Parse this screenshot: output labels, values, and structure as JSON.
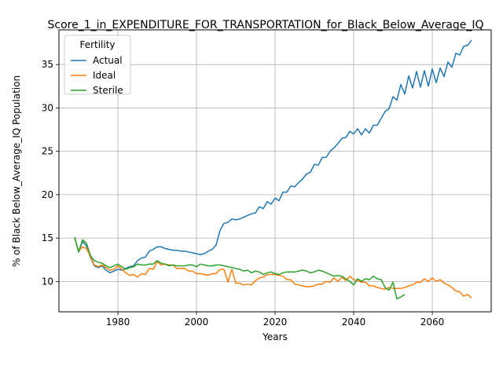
{
  "chart_data": {
    "type": "line",
    "title": "Score_1_in_EXPENDITURE_FOR_TRANSPORTATION_for_Black_Below_Average_IQ",
    "xlabel": "Years",
    "ylabel": "% of Black Below_Average_IQ Population",
    "xlim": [
      1965,
      2075
    ],
    "ylim": [
      6.5,
      39
    ],
    "xticks": [
      1980,
      2000,
      2020,
      2040,
      2060
    ],
    "yticks": [
      10,
      15,
      20,
      25,
      30,
      35
    ],
    "grid": true,
    "legend": {
      "title": "Fertility",
      "placement": "top-left"
    },
    "series": [
      {
        "name": "Actual",
        "color": "#1f77b4",
        "points": [
          [
            1969,
            15.1
          ],
          [
            1970,
            13.4
          ],
          [
            1971,
            14.6
          ],
          [
            1972,
            14.1
          ],
          [
            1973,
            12.8
          ],
          [
            1974,
            11.8
          ],
          [
            1975,
            11.6
          ],
          [
            1976,
            11.8
          ],
          [
            1977,
            11.3
          ],
          [
            1978,
            11.0
          ],
          [
            1979,
            11.2
          ],
          [
            1980,
            11.4
          ],
          [
            1981,
            11.3
          ],
          [
            1982,
            11.5
          ],
          [
            1983,
            11.7
          ],
          [
            1984,
            11.8
          ],
          [
            1985,
            12.4
          ],
          [
            1986,
            12.7
          ],
          [
            1987,
            12.8
          ],
          [
            1988,
            13.5
          ],
          [
            1989,
            13.7
          ],
          [
            1990,
            14.0
          ],
          [
            1991,
            14.0
          ],
          [
            1992,
            13.8
          ],
          [
            1993,
            13.7
          ],
          [
            1994,
            13.6
          ],
          [
            1995,
            13.6
          ],
          [
            1996,
            13.5
          ],
          [
            1997,
            13.5
          ],
          [
            1998,
            13.4
          ],
          [
            1999,
            13.3
          ],
          [
            2000,
            13.2
          ],
          [
            2001,
            13.1
          ],
          [
            2002,
            13.2
          ],
          [
            2003,
            13.5
          ],
          [
            2004,
            13.7
          ],
          [
            2005,
            14.2
          ],
          [
            2006,
            15.9
          ],
          [
            2007,
            16.7
          ],
          [
            2008,
            16.8
          ],
          [
            2009,
            17.2
          ],
          [
            2010,
            17.1
          ],
          [
            2011,
            17.2
          ],
          [
            2012,
            17.4
          ],
          [
            2013,
            17.6
          ],
          [
            2014,
            17.8
          ],
          [
            2015,
            17.9
          ],
          [
            2016,
            18.6
          ],
          [
            2017,
            18.4
          ],
          [
            2018,
            19.2
          ],
          [
            2019,
            18.9
          ],
          [
            2020,
            19.6
          ],
          [
            2021,
            19.3
          ],
          [
            2022,
            20.3
          ],
          [
            2023,
            20.3
          ],
          [
            2024,
            21.0
          ],
          [
            2025,
            20.9
          ],
          [
            2026,
            21.4
          ],
          [
            2027,
            21.8
          ],
          [
            2028,
            22.4
          ],
          [
            2029,
            22.6
          ],
          [
            2030,
            23.5
          ],
          [
            2031,
            23.4
          ],
          [
            2032,
            24.3
          ],
          [
            2033,
            24.3
          ],
          [
            2034,
            25.0
          ],
          [
            2035,
            25.4
          ],
          [
            2036,
            25.9
          ],
          [
            2037,
            26.5
          ],
          [
            2038,
            26.6
          ],
          [
            2039,
            27.3
          ],
          [
            2040,
            27.0
          ],
          [
            2041,
            27.6
          ],
          [
            2042,
            26.9
          ],
          [
            2043,
            27.6
          ],
          [
            2044,
            27.1
          ],
          [
            2045,
            28.0
          ],
          [
            2046,
            28.0
          ],
          [
            2047,
            28.8
          ],
          [
            2048,
            29.6
          ],
          [
            2049,
            29.9
          ],
          [
            2050,
            31.3
          ],
          [
            2051,
            30.9
          ],
          [
            2052,
            32.7
          ],
          [
            2053,
            31.6
          ],
          [
            2054,
            33.7
          ],
          [
            2055,
            32.3
          ],
          [
            2056,
            34.2
          ],
          [
            2057,
            32.4
          ],
          [
            2058,
            34.3
          ],
          [
            2059,
            32.5
          ],
          [
            2060,
            34.5
          ],
          [
            2061,
            32.9
          ],
          [
            2062,
            34.6
          ],
          [
            2063,
            33.6
          ],
          [
            2064,
            35.3
          ],
          [
            2065,
            34.7
          ],
          [
            2066,
            36.3
          ],
          [
            2067,
            36.1
          ],
          [
            2068,
            37.1
          ],
          [
            2069,
            37.2
          ],
          [
            2070,
            37.8
          ]
        ]
      },
      {
        "name": "Ideal",
        "color": "#ff7f0e",
        "points": [
          [
            1969,
            15.0
          ],
          [
            1970,
            13.5
          ],
          [
            1971,
            14.0
          ],
          [
            1972,
            13.8
          ],
          [
            1973,
            12.9
          ],
          [
            1974,
            11.9
          ],
          [
            1975,
            11.7
          ],
          [
            1976,
            11.9
          ],
          [
            1977,
            11.6
          ],
          [
            1978,
            11.3
          ],
          [
            1979,
            11.4
          ],
          [
            1980,
            11.8
          ],
          [
            1981,
            11.4
          ],
          [
            1982,
            11.0
          ],
          [
            1983,
            10.7
          ],
          [
            1984,
            10.8
          ],
          [
            1985,
            10.5
          ],
          [
            1986,
            10.9
          ],
          [
            1987,
            10.8
          ],
          [
            1988,
            11.5
          ],
          [
            1989,
            11.4
          ],
          [
            1990,
            12.3
          ],
          [
            1991,
            11.9
          ],
          [
            1992,
            12.0
          ],
          [
            1993,
            11.9
          ],
          [
            1994,
            11.9
          ],
          [
            1995,
            11.5
          ],
          [
            1996,
            11.5
          ],
          [
            1997,
            11.5
          ],
          [
            1998,
            11.2
          ],
          [
            1999,
            11.2
          ],
          [
            2000,
            10.9
          ],
          [
            2001,
            10.9
          ],
          [
            2002,
            10.8
          ],
          [
            2003,
            10.7
          ],
          [
            2004,
            10.9
          ],
          [
            2005,
            10.9
          ],
          [
            2006,
            11.4
          ],
          [
            2007,
            11.4
          ],
          [
            2008,
            9.9
          ],
          [
            2009,
            11.4
          ],
          [
            2010,
            9.8
          ],
          [
            2011,
            9.8
          ],
          [
            2012,
            9.6
          ],
          [
            2013,
            9.7
          ],
          [
            2014,
            9.6
          ],
          [
            2015,
            10.1
          ],
          [
            2016,
            10.4
          ],
          [
            2017,
            10.5
          ],
          [
            2018,
            10.8
          ],
          [
            2019,
            10.8
          ],
          [
            2020,
            10.8
          ],
          [
            2021,
            10.7
          ],
          [
            2022,
            10.6
          ],
          [
            2023,
            10.2
          ],
          [
            2024,
            10.2
          ],
          [
            2025,
            9.7
          ],
          [
            2026,
            9.6
          ],
          [
            2027,
            9.5
          ],
          [
            2028,
            9.4
          ],
          [
            2029,
            9.4
          ],
          [
            2030,
            9.5
          ],
          [
            2031,
            9.7
          ],
          [
            2032,
            9.7
          ],
          [
            2033,
            10.0
          ],
          [
            2034,
            9.9
          ],
          [
            2035,
            10.4
          ],
          [
            2036,
            10.0
          ],
          [
            2037,
            10.5
          ],
          [
            2038,
            10.1
          ],
          [
            2039,
            10.6
          ],
          [
            2040,
            10.2
          ],
          [
            2041,
            10.1
          ],
          [
            2042,
            9.9
          ],
          [
            2043,
            9.9
          ],
          [
            2044,
            9.5
          ],
          [
            2045,
            9.5
          ],
          [
            2046,
            9.3
          ],
          [
            2047,
            9.2
          ],
          [
            2048,
            9.1
          ],
          [
            2049,
            9.3
          ],
          [
            2050,
            9.2
          ],
          [
            2051,
            9.2
          ],
          [
            2052,
            9.2
          ],
          [
            2053,
            9.3
          ],
          [
            2054,
            9.5
          ],
          [
            2055,
            9.6
          ],
          [
            2056,
            9.9
          ],
          [
            2057,
            9.9
          ],
          [
            2058,
            10.3
          ],
          [
            2059,
            10.0
          ],
          [
            2060,
            10.4
          ],
          [
            2061,
            10.0
          ],
          [
            2062,
            10.2
          ],
          [
            2063,
            9.8
          ],
          [
            2064,
            9.6
          ],
          [
            2065,
            9.3
          ],
          [
            2066,
            8.9
          ],
          [
            2067,
            8.8
          ],
          [
            2068,
            8.3
          ],
          [
            2069,
            8.5
          ],
          [
            2070,
            8.1
          ]
        ]
      },
      {
        "name": "Sterile",
        "color": "#2ca02c",
        "points": [
          [
            1969,
            15.1
          ],
          [
            1970,
            13.4
          ],
          [
            1971,
            14.8
          ],
          [
            1972,
            14.4
          ],
          [
            1973,
            13.0
          ],
          [
            1974,
            12.4
          ],
          [
            1975,
            12.2
          ],
          [
            1976,
            12.1
          ],
          [
            1977,
            11.8
          ],
          [
            1978,
            11.6
          ],
          [
            1979,
            11.8
          ],
          [
            1980,
            12.0
          ],
          [
            1981,
            11.7
          ],
          [
            1982,
            11.4
          ],
          [
            1983,
            11.6
          ],
          [
            1984,
            11.7
          ],
          [
            1985,
            12.0
          ],
          [
            1986,
            11.9
          ],
          [
            1987,
            11.9
          ],
          [
            1988,
            12.0
          ],
          [
            1989,
            12.0
          ],
          [
            1990,
            12.4
          ],
          [
            1991,
            12.1
          ],
          [
            1992,
            12.0
          ],
          [
            1993,
            11.8
          ],
          [
            1994,
            11.9
          ],
          [
            1995,
            11.8
          ],
          [
            1996,
            11.8
          ],
          [
            1997,
            11.8
          ],
          [
            1998,
            11.9
          ],
          [
            1999,
            11.9
          ],
          [
            2000,
            11.7
          ],
          [
            2001,
            12.0
          ],
          [
            2002,
            11.9
          ],
          [
            2003,
            11.8
          ],
          [
            2004,
            11.8
          ],
          [
            2005,
            11.9
          ],
          [
            2006,
            11.9
          ],
          [
            2007,
            11.8
          ],
          [
            2008,
            11.7
          ],
          [
            2009,
            11.6
          ],
          [
            2010,
            11.5
          ],
          [
            2011,
            11.4
          ],
          [
            2012,
            11.2
          ],
          [
            2013,
            11.3
          ],
          [
            2014,
            11.0
          ],
          [
            2015,
            11.2
          ],
          [
            2016,
            11.1
          ],
          [
            2017,
            10.8
          ],
          [
            2018,
            11.0
          ],
          [
            2019,
            11.1
          ],
          [
            2020,
            10.9
          ],
          [
            2021,
            10.8
          ],
          [
            2022,
            11.0
          ],
          [
            2023,
            11.1
          ],
          [
            2024,
            11.1
          ],
          [
            2025,
            11.1
          ],
          [
            2026,
            11.2
          ],
          [
            2027,
            11.3
          ],
          [
            2028,
            11.2
          ],
          [
            2029,
            11.0
          ],
          [
            2030,
            11.1
          ],
          [
            2031,
            11.3
          ],
          [
            2032,
            11.2
          ],
          [
            2033,
            11.0
          ],
          [
            2034,
            10.8
          ],
          [
            2035,
            10.6
          ],
          [
            2036,
            10.7
          ],
          [
            2037,
            10.6
          ],
          [
            2038,
            10.3
          ],
          [
            2039,
            10.0
          ],
          [
            2040,
            9.6
          ],
          [
            2041,
            10.3
          ],
          [
            2042,
            10.0
          ],
          [
            2043,
            10.3
          ],
          [
            2044,
            10.2
          ],
          [
            2045,
            10.6
          ],
          [
            2046,
            10.3
          ],
          [
            2047,
            10.2
          ],
          [
            2048,
            9.3
          ],
          [
            2049,
            9.0
          ],
          [
            2050,
            9.9
          ],
          [
            2051,
            8.0
          ],
          [
            2052,
            8.2
          ],
          [
            2053,
            8.5
          ]
        ]
      }
    ]
  }
}
